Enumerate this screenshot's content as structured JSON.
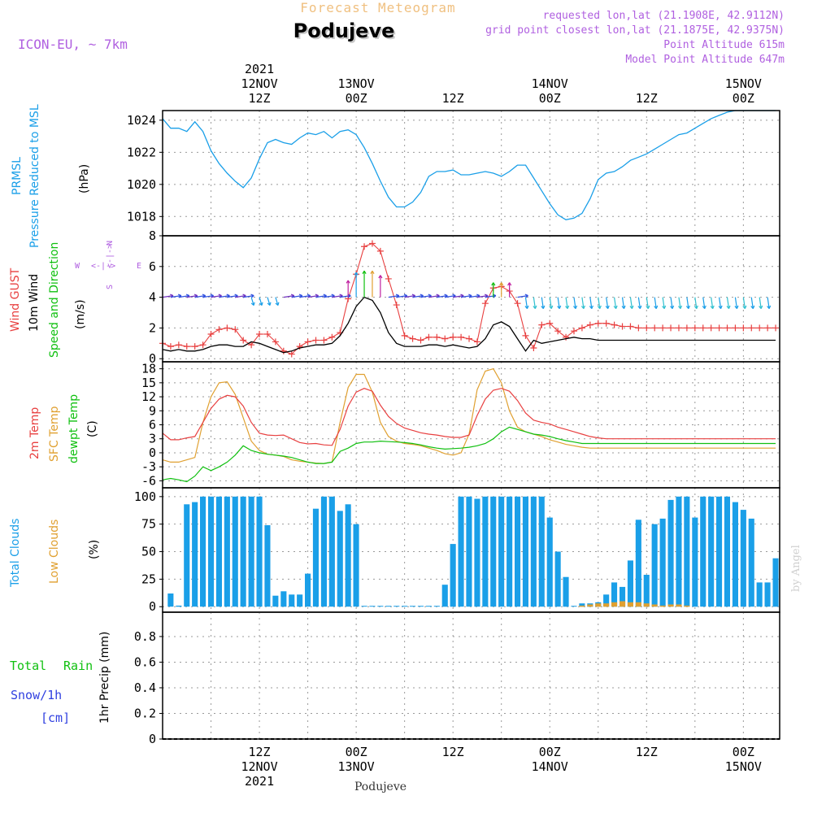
{
  "header": {
    "subtitle": "Forecast Meteogram",
    "title": "Podujeve",
    "model": "ICON-EU, ~ 7km",
    "requested": "requested lon,lat (21.1908E, 42.9112N)",
    "grid": "grid point closest lon,lat (21.1875E, 42.9375N)",
    "point_alt": "Point Altitude 615m",
    "model_alt": "Model Point Altitude 647m"
  },
  "footer": {
    "location": "Podujeve",
    "watermark": "by Angel"
  },
  "colors": {
    "prmsl": "#1a9fe8",
    "gust": "#e84040",
    "wind": "#000000",
    "dir": "#10c010",
    "t2m": "#e84040",
    "sfc": "#e0a030",
    "dewpt": "#10c010",
    "total_clouds": "#1a9fe8",
    "low_clouds": "#e0a030",
    "rain": "#10c010",
    "snow": "#3040e0",
    "header_purple": "#b060e0",
    "header_orange": "#f0c080"
  },
  "time_axis": {
    "top": [
      {
        "pos": 12,
        "lines": [
          "2021",
          "12NOV",
          "12Z"
        ]
      },
      {
        "pos": 24,
        "lines": [
          "13NOV",
          "00Z"
        ]
      },
      {
        "pos": 36,
        "lines": [
          "12Z"
        ]
      },
      {
        "pos": 48,
        "lines": [
          "14NOV",
          "00Z"
        ]
      },
      {
        "pos": 60,
        "lines": [
          "12Z"
        ]
      },
      {
        "pos": 72,
        "lines": [
          "15NOV",
          "00Z"
        ]
      }
    ],
    "bottom": [
      {
        "pos": 12,
        "lines": [
          "12Z",
          "12NOV",
          "2021"
        ]
      },
      {
        "pos": 24,
        "lines": [
          "00Z",
          "13NOV"
        ]
      },
      {
        "pos": 36,
        "lines": [
          "12Z"
        ]
      },
      {
        "pos": 48,
        "lines": [
          "00Z",
          "14NOV"
        ]
      },
      {
        "pos": 60,
        "lines": [
          "12Z"
        ]
      },
      {
        "pos": 72,
        "lines": [
          "00Z",
          "15NOV"
        ]
      }
    ],
    "start_hour": 0,
    "end_hour": 76.5
  },
  "chart_data": [
    {
      "type": "line",
      "title": "PRMSL Pressure Reduced to MSL",
      "ylabel": "(hPa)",
      "label_lines": [
        "PRMSL",
        "Pressure Reduced to MSL"
      ],
      "ylim": [
        1016.8,
        1024.6
      ],
      "yticks": [
        1018,
        1020,
        1022,
        1024
      ],
      "series": [
        {
          "name": "PRMSL",
          "x": [
            0,
            1,
            2,
            3,
            4,
            5,
            6,
            7,
            8,
            9,
            10,
            11,
            12,
            13,
            14,
            15,
            16,
            17,
            18,
            19,
            20,
            21,
            22,
            23,
            24,
            25,
            26,
            27,
            28,
            29,
            30,
            31,
            32,
            33,
            34,
            35,
            36,
            37,
            38,
            39,
            40,
            41,
            42,
            43,
            44,
            45,
            46,
            47,
            48,
            49,
            50,
            51,
            52,
            53,
            54,
            55,
            56,
            57,
            58,
            59,
            60,
            61,
            62,
            63,
            64,
            65,
            66,
            67,
            68,
            69,
            70,
            71,
            72,
            73,
            74,
            75,
            76
          ],
          "values": [
            1024.1,
            1023.5,
            1023.5,
            1023.3,
            1023.9,
            1023.3,
            1022.1,
            1021.3,
            1020.7,
            1020.2,
            1019.8,
            1020.4,
            1021.6,
            1022.6,
            1022.8,
            1022.6,
            1022.5,
            1022.9,
            1023.2,
            1023.1,
            1023.3,
            1022.9,
            1023.3,
            1023.4,
            1023.1,
            1022.3,
            1021.3,
            1020.2,
            1019.2,
            1018.6,
            1018.6,
            1018.9,
            1019.5,
            1020.5,
            1020.8,
            1020.8,
            1020.9,
            1020.6,
            1020.6,
            1020.7,
            1020.8,
            1020.7,
            1020.5,
            1020.8,
            1021.2,
            1021.2,
            1020.4,
            1019.6,
            1018.8,
            1018.1,
            1017.8,
            1017.9,
            1018.2,
            1019.1,
            1020.3,
            1020.7,
            1020.8,
            1021.1,
            1021.5,
            1021.7,
            1021.9,
            1022.2,
            1022.5,
            1022.8,
            1023.1,
            1023.2,
            1023.5,
            1023.8,
            1024.1,
            1024.3,
            1024.5,
            1024.6,
            1024.6,
            1024.6,
            1024.6,
            1024.6,
            1024.6
          ]
        }
      ]
    },
    {
      "type": "line",
      "title": "Wind GUST / 10m Wind Speed and Direction",
      "ylabel": "(m/s)",
      "label_lines": [
        "Wind GUST",
        "10m Wind",
        "Speed and Direction"
      ],
      "compass": {
        "n": "N",
        "s": "S",
        "w": "W",
        "e": "E",
        "arrow": "<-|->"
      },
      "ylim": [
        -0.2,
        8
      ],
      "yticks": [
        0,
        2,
        4,
        6,
        8
      ],
      "series": [
        {
          "name": "Wind GUST",
          "values": [
            1.0,
            0.8,
            0.9,
            0.8,
            0.8,
            0.9,
            1.6,
            1.9,
            2.0,
            1.9,
            1.2,
            0.9,
            1.6,
            1.6,
            1.1,
            0.5,
            0.3,
            0.8,
            1.1,
            1.2,
            1.2,
            1.4,
            1.7,
            3.9,
            5.5,
            7.3,
            7.5,
            7.0,
            5.2,
            3.5,
            1.5,
            1.3,
            1.2,
            1.4,
            1.4,
            1.3,
            1.4,
            1.4,
            1.3,
            1.1,
            3.6,
            4.6,
            4.7,
            4.4,
            3.6,
            1.5,
            0.7,
            2.2,
            2.3,
            1.8,
            1.4,
            1.8,
            2.0,
            2.2,
            2.3,
            2.3,
            2.2,
            2.1,
            2.1,
            2.0,
            2.0,
            2.0,
            2.0,
            2.0,
            2.0,
            2.0,
            2.0,
            2.0,
            2.0,
            2.0,
            2.0,
            2.0,
            2.0,
            2.0,
            2.0,
            2.0,
            2.0
          ]
        },
        {
          "name": "10m Wind",
          "values": [
            0.6,
            0.5,
            0.6,
            0.5,
            0.5,
            0.6,
            0.8,
            0.9,
            0.9,
            0.8,
            0.8,
            1.1,
            1.0,
            0.8,
            0.6,
            0.4,
            0.5,
            0.7,
            0.8,
            0.9,
            0.9,
            1.0,
            1.5,
            2.3,
            3.4,
            4.0,
            3.8,
            3.0,
            1.7,
            1.0,
            0.8,
            0.8,
            0.8,
            0.9,
            0.9,
            0.8,
            0.9,
            0.8,
            0.7,
            0.8,
            1.3,
            2.2,
            2.4,
            2.1,
            1.3,
            0.5,
            1.2,
            1.0,
            1.1,
            1.2,
            1.3,
            1.4,
            1.3,
            1.3,
            1.2,
            1.2,
            1.2,
            1.2,
            1.2,
            1.2,
            1.2,
            1.2,
            1.2,
            1.2,
            1.2,
            1.2,
            1.2,
            1.2,
            1.2,
            1.2,
            1.2,
            1.2,
            1.2,
            1.2,
            1.2,
            1.2,
            1.2
          ]
        }
      ]
    },
    {
      "type": "line",
      "title": "2m Temp / SFC Temp / dewpt Temp",
      "ylabel": "(C)",
      "label_lines": [
        "2m Temp",
        "SFC Temp",
        "dewpt Temp"
      ],
      "ylim": [
        -7.5,
        19.5
      ],
      "yticks": [
        -6,
        -3,
        0,
        3,
        6,
        9,
        12,
        15,
        18
      ],
      "series": [
        {
          "name": "2m Temp",
          "values": [
            4.2,
            2.8,
            2.8,
            3.2,
            3.5,
            6.5,
            9.5,
            11.5,
            12.3,
            12.0,
            10.0,
            6.5,
            4.2,
            3.8,
            3.7,
            3.8,
            3.0,
            2.2,
            1.9,
            2.0,
            1.7,
            1.6,
            5.0,
            10.0,
            13.0,
            13.8,
            13.2,
            10.2,
            7.8,
            6.3,
            5.3,
            4.8,
            4.3,
            4.0,
            3.8,
            3.5,
            3.3,
            3.3,
            3.8,
            8.0,
            11.5,
            13.4,
            13.8,
            13.2,
            11.2,
            8.5,
            7.0,
            6.5,
            6.2,
            5.5,
            5.0,
            4.5,
            4.0,
            3.5,
            3.2,
            3.0,
            3.0,
            3.0,
            3.0,
            3.0,
            3.0,
            3.0,
            3.0,
            3.0,
            3.0,
            3.0,
            3.0,
            3.0,
            3.0,
            3.0,
            3.0,
            3.0,
            3.0,
            3.0,
            3.0,
            3.0,
            3.0
          ]
        },
        {
          "name": "SFC Temp",
          "values": [
            -1.5,
            -2.0,
            -2.0,
            -1.5,
            -1.0,
            6.5,
            12.0,
            15.0,
            15.2,
            12.5,
            7.5,
            2.5,
            0.5,
            -0.3,
            -0.5,
            -0.8,
            -1.5,
            -1.8,
            -2.0,
            -2.2,
            -2.3,
            -2.0,
            6.5,
            14.0,
            16.8,
            16.8,
            13.0,
            6.5,
            3.5,
            2.5,
            2.0,
            1.8,
            1.5,
            1.0,
            0.5,
            -0.2,
            -0.5,
            0.0,
            4.0,
            13.5,
            17.5,
            18.0,
            15.0,
            9.0,
            5.5,
            4.5,
            4.0,
            3.5,
            2.8,
            2.3,
            1.8,
            1.5,
            1.2,
            1.0,
            1.0,
            1.0,
            1.0,
            1.0,
            1.0,
            1.0,
            1.0,
            1.0,
            1.0,
            1.0,
            1.0,
            1.0,
            1.0,
            1.0,
            1.0,
            1.0,
            1.0,
            1.0,
            1.0,
            1.0,
            1.0,
            1.0,
            1.0
          ]
        },
        {
          "name": "dewpt Temp",
          "values": [
            -5.8,
            -5.5,
            -5.8,
            -6.2,
            -5.0,
            -3.0,
            -3.8,
            -3.0,
            -2.0,
            -0.5,
            1.5,
            0.5,
            0.0,
            -0.3,
            -0.5,
            -0.7,
            -1.0,
            -1.5,
            -2.0,
            -2.3,
            -2.3,
            -2.0,
            0.3,
            1.0,
            2.0,
            2.3,
            2.3,
            2.5,
            2.4,
            2.3,
            2.2,
            2.0,
            1.7,
            1.3,
            1.0,
            0.8,
            0.9,
            1.0,
            1.2,
            1.5,
            2.0,
            3.0,
            4.5,
            5.5,
            5.0,
            4.5,
            4.0,
            3.8,
            3.5,
            3.0,
            2.6,
            2.3,
            2.0,
            2.0,
            2.0,
            2.0,
            2.0,
            2.0,
            2.0,
            2.0,
            2.0,
            2.0,
            2.0,
            2.0,
            2.0,
            2.0,
            2.0,
            2.0,
            2.0,
            2.0,
            2.0,
            2.0,
            2.0,
            2.0,
            2.0,
            2.0,
            2.0
          ]
        }
      ]
    },
    {
      "type": "bar",
      "title": "Total Clouds / Low Clouds",
      "ylabel": "(%)",
      "label_lines": [
        "Total Clouds",
        "Low Clouds"
      ],
      "ylim": [
        -5,
        108
      ],
      "yticks": [
        0,
        25,
        50,
        75,
        100
      ],
      "series": [
        {
          "name": "Total Clouds",
          "values": [
            12,
            1,
            93,
            95,
            100,
            100,
            100,
            100,
            100,
            100,
            100,
            100,
            74,
            10,
            14,
            11,
            11,
            30,
            89,
            100,
            100,
            87,
            93,
            75,
            0,
            0,
            0,
            0,
            0,
            0,
            0,
            0,
            0,
            0,
            20,
            57,
            100,
            100,
            98,
            100,
            100,
            100,
            100,
            100,
            100,
            100,
            100,
            81,
            50,
            27,
            0,
            3,
            3,
            4,
            11,
            22,
            18,
            42,
            79,
            29,
            75,
            80,
            97,
            100,
            100,
            81,
            100,
            100,
            100,
            100,
            95,
            88,
            80,
            22,
            22,
            44
          ]
        },
        {
          "name": "Low Clouds",
          "values": [
            0,
            0,
            0,
            0,
            0,
            0,
            0,
            0,
            0,
            0,
            0,
            0,
            0,
            0,
            0,
            0,
            0,
            0,
            0,
            0,
            0,
            0,
            0,
            0,
            0,
            0,
            0,
            0,
            0,
            0,
            0,
            0,
            0,
            0,
            0,
            0,
            0,
            0,
            0,
            0,
            0,
            0,
            0,
            0,
            0,
            0,
            0,
            0,
            0,
            0,
            0,
            1,
            2,
            3,
            3,
            4,
            5,
            4,
            4,
            3,
            2,
            1,
            2,
            2,
            1,
            0,
            0,
            0,
            0,
            0,
            0,
            0,
            0,
            0,
            0,
            0
          ]
        }
      ]
    },
    {
      "type": "bar",
      "title": "1hr Precip (mm)",
      "ylabel": "1hr Precip (mm)",
      "label_lines": [
        "Total",
        "Rain",
        "Snow/1h",
        "[cm]"
      ],
      "ylim": [
        0,
        0.99
      ],
      "yticks": [
        0,
        0.2,
        0.4,
        0.6,
        0.8
      ],
      "series": [
        {
          "name": "Total Rain",
          "values": []
        },
        {
          "name": "Snow/1h",
          "values": []
        }
      ]
    }
  ]
}
